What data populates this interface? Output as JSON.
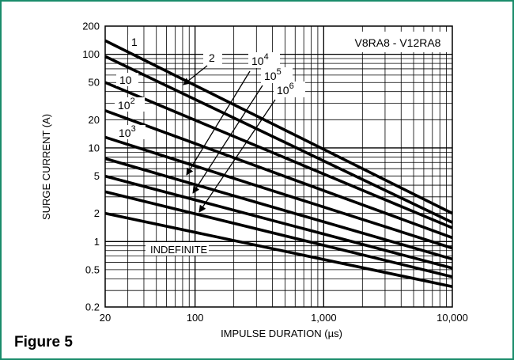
{
  "figure_caption": "Figure 5",
  "colors": {
    "frame": "#1a8c6b",
    "grid": "#000000",
    "curve": "#000000"
  },
  "chart_data": {
    "type": "line",
    "title": "",
    "model_label": "V8RA8 - V12RA8",
    "xlabel": "IMPULSE DURATION (µs)",
    "ylabel": "SURGE CURRENT (A)",
    "xscale": "log",
    "yscale": "log",
    "grid": true,
    "xlim": [
      20,
      10000
    ],
    "ylim": [
      0.2,
      200
    ],
    "xticks": [
      20,
      100,
      1000,
      10000
    ],
    "xtick_labels": [
      "20",
      "100",
      "1,000",
      "10,000"
    ],
    "yticks": [
      0.2,
      0.5,
      1,
      2,
      5,
      10,
      20,
      50,
      100,
      200
    ],
    "ytick_labels": [
      "0.2",
      "0.5",
      "1",
      "2",
      "5",
      "10",
      "20",
      "50",
      "100",
      "200"
    ],
    "series": [
      {
        "name": "1",
        "x": [
          20,
          10000
        ],
        "y": [
          140,
          2.0
        ]
      },
      {
        "name": "2",
        "x": [
          20,
          10000
        ],
        "y": [
          95,
          1.6
        ]
      },
      {
        "name": "10",
        "x": [
          20,
          10000
        ],
        "y": [
          50,
          1.4
        ]
      },
      {
        "name": "10^2",
        "x": [
          20,
          10000
        ],
        "y": [
          25,
          1.1
        ]
      },
      {
        "name": "10^3",
        "x": [
          20,
          10000
        ],
        "y": [
          13,
          0.85
        ]
      },
      {
        "name": "10^4",
        "x": [
          20,
          10000
        ],
        "y": [
          7.7,
          0.65
        ]
      },
      {
        "name": "10^5",
        "x": [
          20,
          10000
        ],
        "y": [
          5,
          0.52
        ]
      },
      {
        "name": "10^6",
        "x": [
          20,
          10000
        ],
        "y": [
          3.4,
          0.42
        ]
      },
      {
        "name": "INDEFINITE",
        "x": [
          20,
          10000
        ],
        "y": [
          2.0,
          0.33
        ]
      }
    ],
    "curve_labels": [
      {
        "base": "1",
        "exp": ""
      },
      {
        "base": "2",
        "exp": ""
      },
      {
        "base": "10",
        "exp": ""
      },
      {
        "base": "10",
        "exp": "2"
      },
      {
        "base": "10",
        "exp": "3"
      },
      {
        "base": "10",
        "exp": "4"
      },
      {
        "base": "10",
        "exp": "5"
      },
      {
        "base": "10",
        "exp": "6"
      },
      {
        "base": "INDEFINITE",
        "exp": ""
      }
    ]
  }
}
